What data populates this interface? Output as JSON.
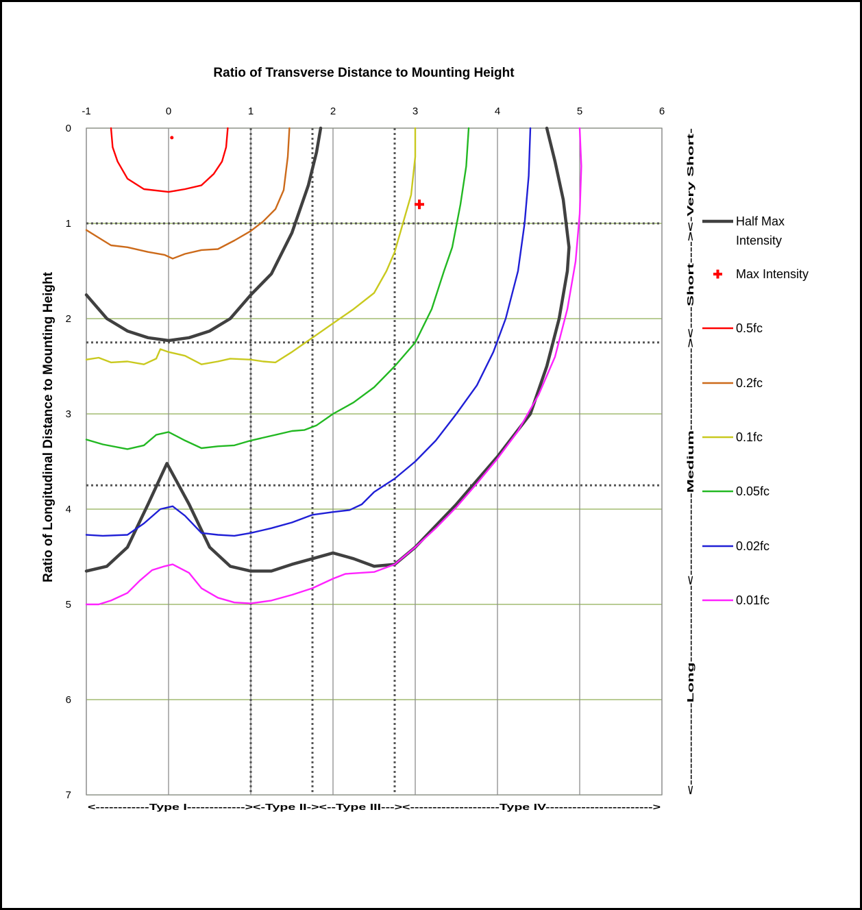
{
  "chart_data": {
    "type": "line",
    "title": "Ratio of Transverse Distance to Mounting Height",
    "xlabel": "Ratio of Transverse Distance to Mounting Height",
    "ylabel": "Ratio of Longitudinal Distance to Mounting Height",
    "xlim": [
      -1,
      6
    ],
    "ylim": [
      0,
      7
    ],
    "y_inverted": true,
    "x_ticks": [
      "-1",
      "0",
      "1",
      "2",
      "3",
      "4",
      "5",
      "6"
    ],
    "y_ticks": [
      "0",
      "1",
      "2",
      "3",
      "4",
      "5",
      "6",
      "7"
    ],
    "x_axis_position": "top",
    "grid": true,
    "legend_position": "right",
    "type_bands": {
      "label": "<------------Type I-------------><-Type II-><--Type III---><--------------------Type IV------------------------>",
      "boundaries": [
        1,
        1.75,
        2.75
      ]
    },
    "length_bands": {
      "label": "<---------------Long--------------<---------------Medium---------------><----Short----><-Very Short-",
      "boundaries": [
        1,
        2.25,
        3.75
      ]
    },
    "max_intensity": {
      "name": "Max Intensity",
      "x": 3.05,
      "y": 0.8,
      "color": "#ff0000"
    },
    "series": [
      {
        "name": "Half Max Intensity",
        "color": "#404040",
        "points": [
          [
            -1,
            1.75
          ],
          [
            -0.75,
            2.0
          ],
          [
            -0.5,
            2.13
          ],
          [
            -0.25,
            2.2
          ],
          [
            0,
            2.23
          ],
          [
            0.25,
            2.2
          ],
          [
            0.5,
            2.13
          ],
          [
            0.75,
            2.0
          ],
          [
            1,
            1.75
          ],
          [
            1.25,
            1.53
          ],
          [
            1.5,
            1.1
          ],
          [
            1.7,
            0.6
          ],
          [
            1.8,
            0.25
          ],
          [
            1.85,
            0
          ]
        ]
      },
      {
        "name": "Half Max Intensity",
        "color": "#404040",
        "points": [
          [
            -1,
            4.65
          ],
          [
            -0.75,
            4.6
          ],
          [
            -0.5,
            4.4
          ],
          [
            -0.25,
            3.95
          ],
          [
            -0.02,
            3.52
          ],
          [
            0.25,
            3.95
          ],
          [
            0.5,
            4.4
          ],
          [
            0.75,
            4.6
          ],
          [
            1,
            4.65
          ],
          [
            1.25,
            4.65
          ],
          [
            1.5,
            4.58
          ],
          [
            1.75,
            4.52
          ],
          [
            2,
            4.46
          ],
          [
            2.25,
            4.52
          ],
          [
            2.5,
            4.6
          ],
          [
            2.75,
            4.58
          ],
          [
            3,
            4.4
          ],
          [
            3.5,
            3.95
          ],
          [
            4,
            3.45
          ],
          [
            4.4,
            3.0
          ],
          [
            4.6,
            2.5
          ],
          [
            4.75,
            2.0
          ],
          [
            4.85,
            1.5
          ],
          [
            4.87,
            1.25
          ],
          [
            4.8,
            0.75
          ],
          [
            4.7,
            0.35
          ],
          [
            4.6,
            0
          ]
        ]
      },
      {
        "name": "0.5fc",
        "color": "#ff0000",
        "points": [
          [
            -0.7,
            0
          ],
          [
            -0.68,
            0.2
          ],
          [
            -0.62,
            0.35
          ],
          [
            -0.5,
            0.53
          ],
          [
            -0.3,
            0.64
          ],
          [
            0,
            0.67
          ],
          [
            0.2,
            0.64
          ],
          [
            0.4,
            0.6
          ],
          [
            0.55,
            0.48
          ],
          [
            0.65,
            0.35
          ],
          [
            0.7,
            0.2
          ],
          [
            0.72,
            0
          ]
        ]
      },
      {
        "name": "0.2fc",
        "color": "#cc6a1a",
        "points": [
          [
            -1,
            1.07
          ],
          [
            -0.85,
            1.15
          ],
          [
            -0.7,
            1.23
          ],
          [
            -0.5,
            1.25
          ],
          [
            -0.25,
            1.3
          ],
          [
            -0.05,
            1.33
          ],
          [
            0.05,
            1.37
          ],
          [
            0.2,
            1.32
          ],
          [
            0.4,
            1.28
          ],
          [
            0.6,
            1.27
          ],
          [
            0.8,
            1.18
          ],
          [
            1,
            1.08
          ],
          [
            1.15,
            0.98
          ],
          [
            1.3,
            0.85
          ],
          [
            1.4,
            0.65
          ],
          [
            1.45,
            0.3
          ],
          [
            1.47,
            0
          ]
        ]
      },
      {
        "name": "0.1fc",
        "color": "#c9c91e",
        "points": [
          [
            -1,
            2.43
          ],
          [
            -0.85,
            2.41
          ],
          [
            -0.7,
            2.46
          ],
          [
            -0.5,
            2.45
          ],
          [
            -0.3,
            2.48
          ],
          [
            -0.15,
            2.42
          ],
          [
            -0.1,
            2.32
          ],
          [
            0,
            2.35
          ],
          [
            0.2,
            2.39
          ],
          [
            0.4,
            2.48
          ],
          [
            0.6,
            2.45
          ],
          [
            0.75,
            2.42
          ],
          [
            1,
            2.43
          ],
          [
            1.15,
            2.45
          ],
          [
            1.3,
            2.46
          ],
          [
            1.5,
            2.35
          ],
          [
            1.75,
            2.2
          ],
          [
            2,
            2.05
          ],
          [
            2.25,
            1.9
          ],
          [
            2.5,
            1.73
          ],
          [
            2.65,
            1.5
          ],
          [
            2.75,
            1.3
          ],
          [
            2.85,
            1.0
          ],
          [
            2.95,
            0.7
          ],
          [
            3,
            0.3
          ],
          [
            3,
            0
          ]
        ]
      },
      {
        "name": "0.05fc",
        "color": "#22b822",
        "points": [
          [
            -1,
            3.27
          ],
          [
            -0.8,
            3.32
          ],
          [
            -0.5,
            3.37
          ],
          [
            -0.3,
            3.33
          ],
          [
            -0.15,
            3.22
          ],
          [
            0,
            3.19
          ],
          [
            0.2,
            3.28
          ],
          [
            0.4,
            3.36
          ],
          [
            0.6,
            3.34
          ],
          [
            0.8,
            3.33
          ],
          [
            1,
            3.28
          ],
          [
            1.25,
            3.23
          ],
          [
            1.5,
            3.18
          ],
          [
            1.65,
            3.17
          ],
          [
            1.8,
            3.12
          ],
          [
            2,
            3.0
          ],
          [
            2.25,
            2.88
          ],
          [
            2.5,
            2.72
          ],
          [
            2.75,
            2.5
          ],
          [
            3,
            2.25
          ],
          [
            3.2,
            1.9
          ],
          [
            3.35,
            1.5
          ],
          [
            3.45,
            1.25
          ],
          [
            3.55,
            0.8
          ],
          [
            3.62,
            0.4
          ],
          [
            3.65,
            0
          ]
        ]
      },
      {
        "name": "0.02fc",
        "color": "#1f1fd6",
        "points": [
          [
            -1,
            4.27
          ],
          [
            -0.8,
            4.28
          ],
          [
            -0.5,
            4.27
          ],
          [
            -0.3,
            4.15
          ],
          [
            -0.1,
            4.0
          ],
          [
            0.05,
            3.97
          ],
          [
            0.2,
            4.07
          ],
          [
            0.4,
            4.25
          ],
          [
            0.6,
            4.27
          ],
          [
            0.8,
            4.28
          ],
          [
            1,
            4.25
          ],
          [
            1.25,
            4.2
          ],
          [
            1.5,
            4.14
          ],
          [
            1.75,
            4.06
          ],
          [
            2,
            4.03
          ],
          [
            2.2,
            4.01
          ],
          [
            2.35,
            3.95
          ],
          [
            2.5,
            3.82
          ],
          [
            2.75,
            3.68
          ],
          [
            3,
            3.5
          ],
          [
            3.25,
            3.28
          ],
          [
            3.5,
            3.0
          ],
          [
            3.75,
            2.7
          ],
          [
            3.95,
            2.35
          ],
          [
            4.1,
            2.0
          ],
          [
            4.25,
            1.5
          ],
          [
            4.33,
            1.0
          ],
          [
            4.38,
            0.5
          ],
          [
            4.4,
            0
          ]
        ]
      },
      {
        "name": "0.01fc",
        "color": "#ff22ff",
        "points": [
          [
            -1,
            5.0
          ],
          [
            -0.85,
            5.0
          ],
          [
            -0.7,
            4.96
          ],
          [
            -0.5,
            4.88
          ],
          [
            -0.35,
            4.75
          ],
          [
            -0.2,
            4.64
          ],
          [
            -0.05,
            4.6
          ],
          [
            0.05,
            4.58
          ],
          [
            0.25,
            4.67
          ],
          [
            0.4,
            4.83
          ],
          [
            0.6,
            4.93
          ],
          [
            0.8,
            4.98
          ],
          [
            1,
            4.99
          ],
          [
            1.25,
            4.96
          ],
          [
            1.5,
            4.9
          ],
          [
            1.75,
            4.83
          ],
          [
            2,
            4.73
          ],
          [
            2.15,
            4.68
          ],
          [
            2.5,
            4.66
          ],
          [
            2.75,
            4.58
          ],
          [
            3,
            4.4
          ],
          [
            3.25,
            4.2
          ],
          [
            3.5,
            3.98
          ],
          [
            3.75,
            3.73
          ],
          [
            4,
            3.47
          ],
          [
            4.25,
            3.18
          ],
          [
            4.5,
            2.8
          ],
          [
            4.7,
            2.4
          ],
          [
            4.85,
            1.9
          ],
          [
            4.95,
            1.4
          ],
          [
            5,
            0.9
          ],
          [
            5.02,
            0.4
          ],
          [
            5,
            0
          ]
        ]
      }
    ]
  }
}
